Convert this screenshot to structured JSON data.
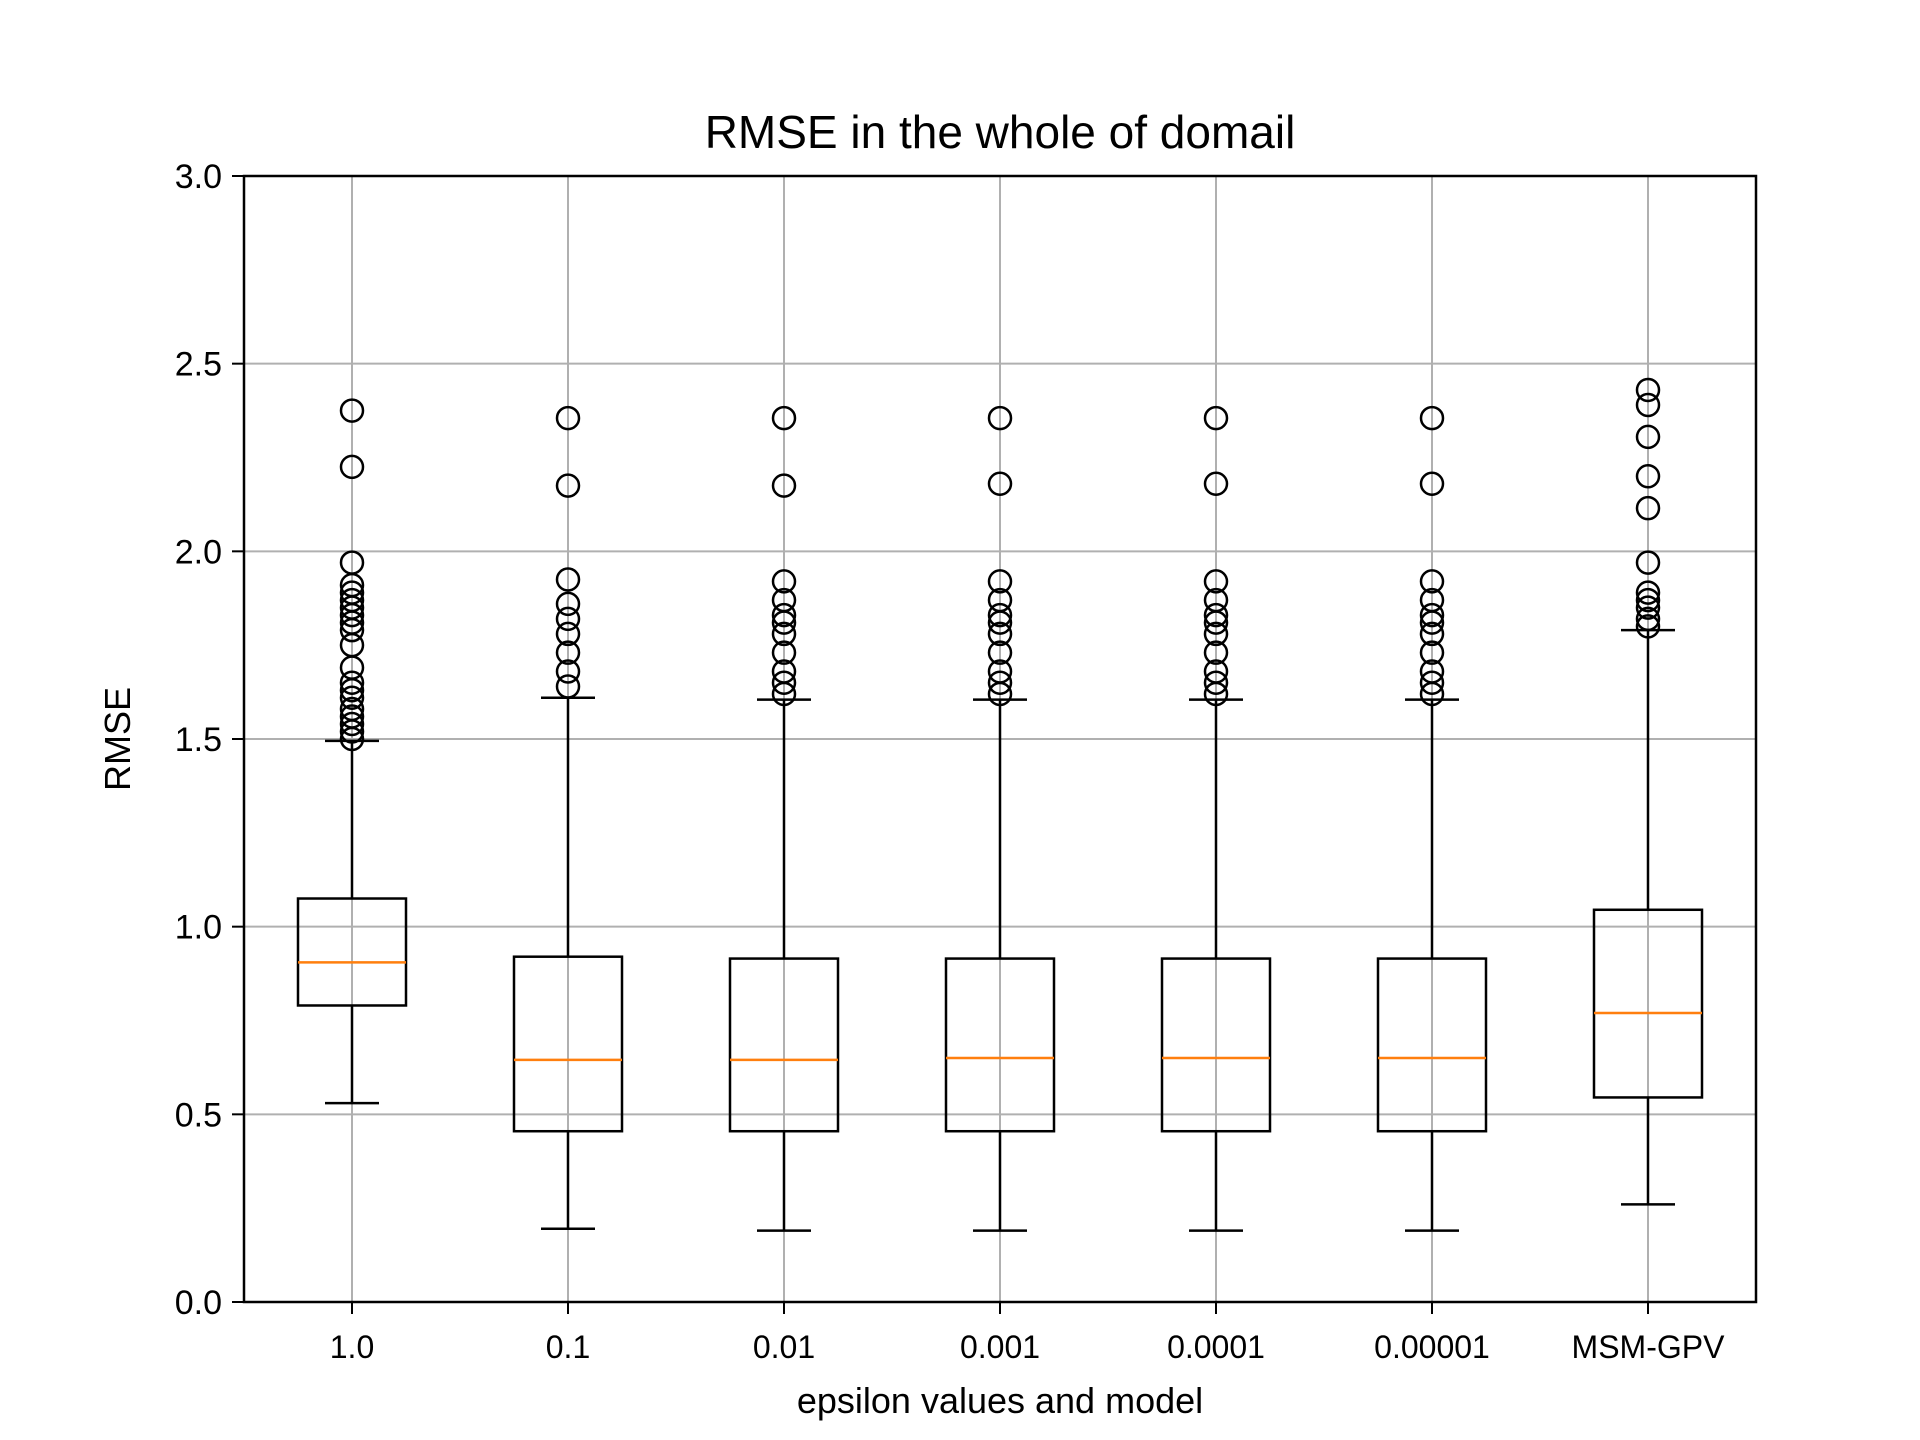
{
  "chart_data": {
    "type": "boxplot",
    "title": "RMSE in the whole of domail",
    "xlabel": "epsilon values and model",
    "ylabel": "RMSE",
    "ylim": [
      0.0,
      3.0
    ],
    "yticks": [
      "0.0",
      "0.5",
      "1.0",
      "1.5",
      "2.0",
      "2.5",
      "3.0"
    ],
    "grid": true,
    "colors": {
      "box": "#000000",
      "median": "#ff7f0e",
      "grid": "#b0b0b0",
      "flier": "#000000"
    },
    "categories": [
      "1.0",
      "0.1",
      "0.01",
      "0.001",
      "0.0001",
      "0.00001",
      "MSM-GPV"
    ],
    "boxes": [
      {
        "whisker_low": 0.53,
        "q1": 0.79,
        "median": 0.905,
        "q3": 1.075,
        "whisker_high": 1.495,
        "fliers": [
          1.5,
          1.52,
          1.54,
          1.56,
          1.58,
          1.61,
          1.63,
          1.65,
          1.69,
          1.75,
          1.79,
          1.81,
          1.83,
          1.85,
          1.87,
          1.89,
          1.91,
          1.97,
          2.225,
          2.375
        ]
      },
      {
        "whisker_low": 0.195,
        "q1": 0.455,
        "median": 0.645,
        "q3": 0.92,
        "whisker_high": 1.61,
        "fliers": [
          1.64,
          1.68,
          1.73,
          1.78,
          1.82,
          1.86,
          1.925,
          2.175,
          2.355
        ]
      },
      {
        "whisker_low": 0.19,
        "q1": 0.455,
        "median": 0.645,
        "q3": 0.915,
        "whisker_high": 1.605,
        "fliers": [
          1.62,
          1.65,
          1.68,
          1.73,
          1.78,
          1.81,
          1.83,
          1.87,
          1.92,
          2.175,
          2.355
        ]
      },
      {
        "whisker_low": 0.19,
        "q1": 0.455,
        "median": 0.65,
        "q3": 0.915,
        "whisker_high": 1.605,
        "fliers": [
          1.62,
          1.65,
          1.68,
          1.73,
          1.78,
          1.81,
          1.83,
          1.87,
          1.92,
          2.18,
          2.355
        ]
      },
      {
        "whisker_low": 0.19,
        "q1": 0.455,
        "median": 0.65,
        "q3": 0.915,
        "whisker_high": 1.605,
        "fliers": [
          1.62,
          1.65,
          1.68,
          1.73,
          1.78,
          1.81,
          1.83,
          1.87,
          1.92,
          2.18,
          2.355
        ]
      },
      {
        "whisker_low": 0.19,
        "q1": 0.455,
        "median": 0.65,
        "q3": 0.915,
        "whisker_high": 1.605,
        "fliers": [
          1.62,
          1.65,
          1.68,
          1.73,
          1.78,
          1.81,
          1.83,
          1.87,
          1.92,
          2.18,
          2.355
        ]
      },
      {
        "whisker_low": 0.26,
        "q1": 0.545,
        "median": 0.77,
        "q3": 1.045,
        "whisker_high": 1.79,
        "fliers": [
          1.8,
          1.82,
          1.85,
          1.87,
          1.89,
          1.97,
          2.115,
          2.2,
          2.305,
          2.39,
          2.43
        ]
      }
    ]
  }
}
